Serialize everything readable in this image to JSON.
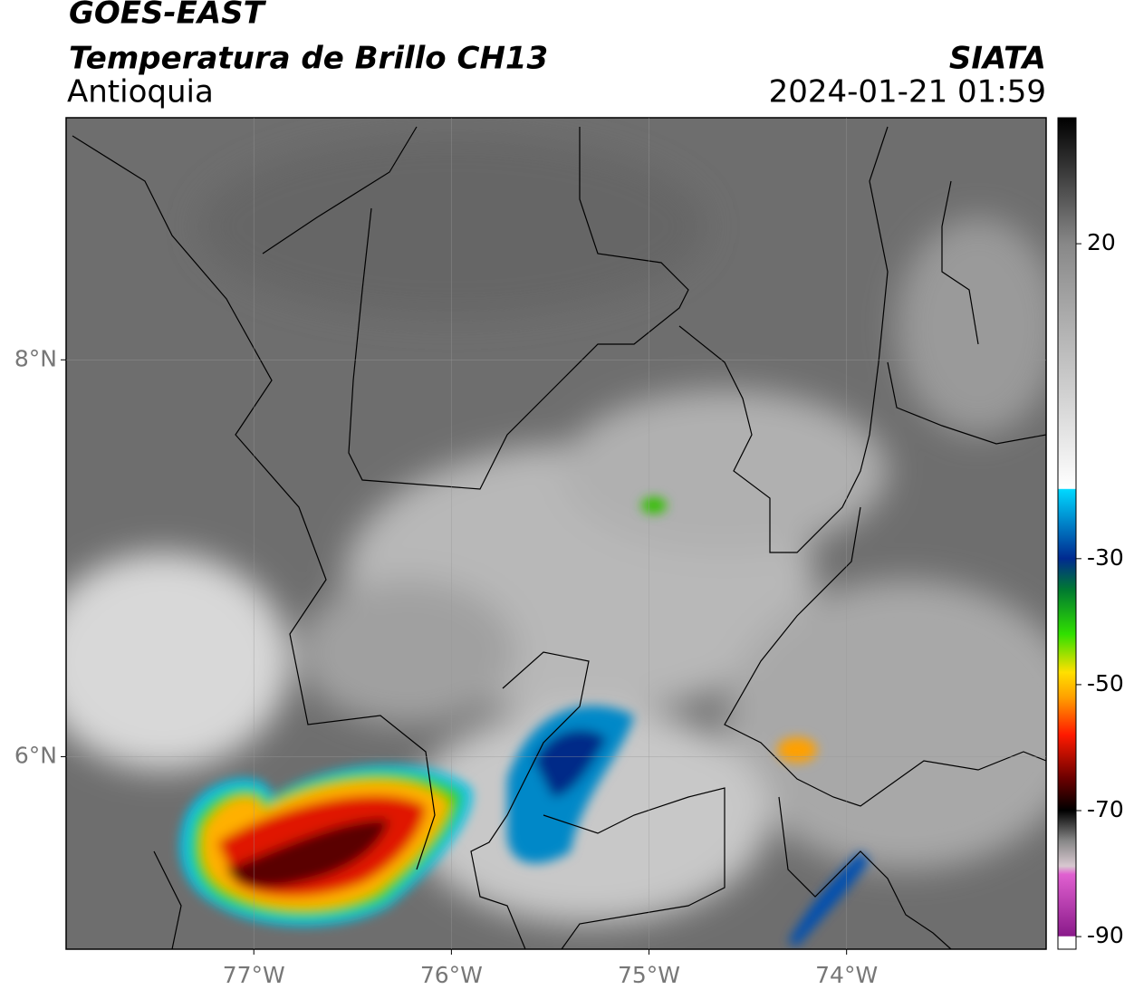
{
  "header": {
    "satellite": "GOES-EAST",
    "product": "Temperatura de Brillo CH13",
    "region": "Antioquia",
    "agency": "SIATA",
    "datetime": "2024-01-21 01:59"
  },
  "map": {
    "xlim": [
      -77.95,
      -72.99
    ],
    "ylim": [
      5.03,
      9.22
    ],
    "xticks": [
      {
        "value": -77,
        "label": "77°W"
      },
      {
        "value": -76,
        "label": "76°W"
      },
      {
        "value": -75,
        "label": "75°W"
      },
      {
        "value": -74,
        "label": "74°W"
      }
    ],
    "yticks": [
      {
        "value": 8,
        "label": "8°N"
      },
      {
        "value": 6,
        "label": "6°N"
      }
    ],
    "grid": true
  },
  "colorbar": {
    "lim": [
      -92,
      40
    ],
    "ticks": [
      20,
      -30,
      -50,
      -70,
      -90
    ]
  }
}
